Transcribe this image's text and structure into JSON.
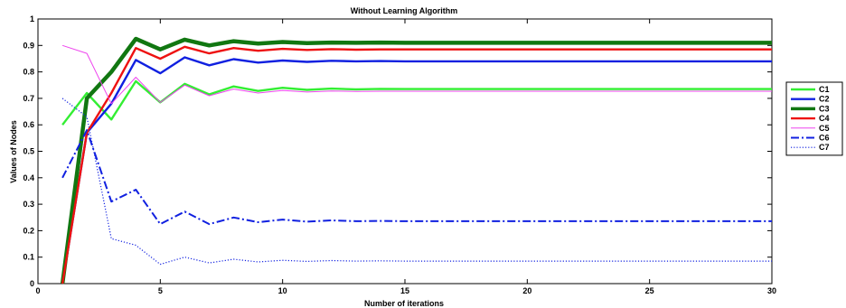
{
  "chart_data": {
    "type": "line",
    "title": "Without Learning Algorithm",
    "xlabel": "Number of iterations",
    "ylabel": "Values of Nodes",
    "xlim": [
      0,
      30
    ],
    "ylim": [
      0,
      1
    ],
    "xticks": [
      0,
      5,
      10,
      15,
      20,
      25,
      30
    ],
    "yticks": [
      0,
      0.1,
      0.2,
      0.3,
      0.4,
      0.5,
      0.6,
      0.7,
      0.8,
      0.9,
      1
    ],
    "grid": false,
    "legend_position": "right",
    "x": [
      1,
      2,
      3,
      4,
      5,
      6,
      7,
      8,
      9,
      10,
      11,
      12,
      13,
      14,
      15,
      16,
      17,
      18,
      19,
      20,
      21,
      22,
      23,
      24,
      25,
      26,
      27,
      28,
      29,
      30
    ],
    "series": [
      {
        "name": "C1",
        "color": "#33ee33",
        "style": "solid",
        "width": 2.4,
        "values": [
          0.6,
          0.72,
          0.62,
          0.765,
          0.685,
          0.755,
          0.715,
          0.745,
          0.728,
          0.74,
          0.732,
          0.737,
          0.734,
          0.736,
          0.735,
          0.735,
          0.735,
          0.735,
          0.735,
          0.735,
          0.735,
          0.735,
          0.735,
          0.735,
          0.735,
          0.735,
          0.735,
          0.735,
          0.735,
          0.735
        ]
      },
      {
        "name": "C2",
        "color": "#1020e0",
        "style": "solid",
        "width": 2.4,
        "values": [
          0.0,
          0.57,
          0.68,
          0.845,
          0.795,
          0.855,
          0.825,
          0.848,
          0.835,
          0.843,
          0.838,
          0.842,
          0.84,
          0.841,
          0.84,
          0.84,
          0.84,
          0.84,
          0.84,
          0.84,
          0.84,
          0.84,
          0.84,
          0.84,
          0.84,
          0.84,
          0.84,
          0.84,
          0.84,
          0.84
        ]
      },
      {
        "name": "C3",
        "color": "#117711",
        "style": "solid",
        "width": 4.5,
        "values": [
          0.0,
          0.7,
          0.8,
          0.925,
          0.885,
          0.922,
          0.9,
          0.916,
          0.907,
          0.913,
          0.909,
          0.911,
          0.91,
          0.911,
          0.91,
          0.91,
          0.91,
          0.91,
          0.91,
          0.91,
          0.91,
          0.91,
          0.91,
          0.91,
          0.91,
          0.91,
          0.91,
          0.91,
          0.91,
          0.91
        ]
      },
      {
        "name": "C4",
        "color": "#ee1111",
        "style": "solid",
        "width": 2.4,
        "values": [
          0.0,
          0.57,
          0.72,
          0.89,
          0.85,
          0.895,
          0.87,
          0.89,
          0.88,
          0.887,
          0.883,
          0.886,
          0.884,
          0.885,
          0.885,
          0.885,
          0.885,
          0.885,
          0.885,
          0.885,
          0.885,
          0.885,
          0.885,
          0.885,
          0.885,
          0.885,
          0.885,
          0.885,
          0.885,
          0.885
        ]
      },
      {
        "name": "C5",
        "color": "#ee44ee",
        "style": "solid",
        "width": 1.0,
        "values": [
          0.9,
          0.87,
          0.68,
          0.78,
          0.685,
          0.75,
          0.71,
          0.735,
          0.72,
          0.73,
          0.724,
          0.728,
          0.726,
          0.727,
          0.727,
          0.727,
          0.727,
          0.727,
          0.727,
          0.727,
          0.727,
          0.727,
          0.727,
          0.727,
          0.727,
          0.727,
          0.727,
          0.727,
          0.727,
          0.727
        ]
      },
      {
        "name": "C6",
        "color": "#1020e0",
        "style": "dashdot",
        "width": 2.0,
        "values": [
          0.4,
          0.58,
          0.31,
          0.355,
          0.225,
          0.272,
          0.225,
          0.25,
          0.232,
          0.242,
          0.234,
          0.239,
          0.236,
          0.237,
          0.236,
          0.236,
          0.236,
          0.236,
          0.236,
          0.236,
          0.236,
          0.236,
          0.236,
          0.236,
          0.236,
          0.236,
          0.236,
          0.236,
          0.236,
          0.236
        ]
      },
      {
        "name": "C7",
        "color": "#1020e0",
        "style": "dotted",
        "width": 1.2,
        "values": [
          0.7,
          0.63,
          0.17,
          0.145,
          0.073,
          0.1,
          0.078,
          0.092,
          0.082,
          0.088,
          0.084,
          0.087,
          0.085,
          0.086,
          0.085,
          0.085,
          0.085,
          0.085,
          0.085,
          0.085,
          0.085,
          0.085,
          0.085,
          0.085,
          0.085,
          0.085,
          0.085,
          0.085,
          0.085,
          0.085
        ]
      }
    ]
  }
}
